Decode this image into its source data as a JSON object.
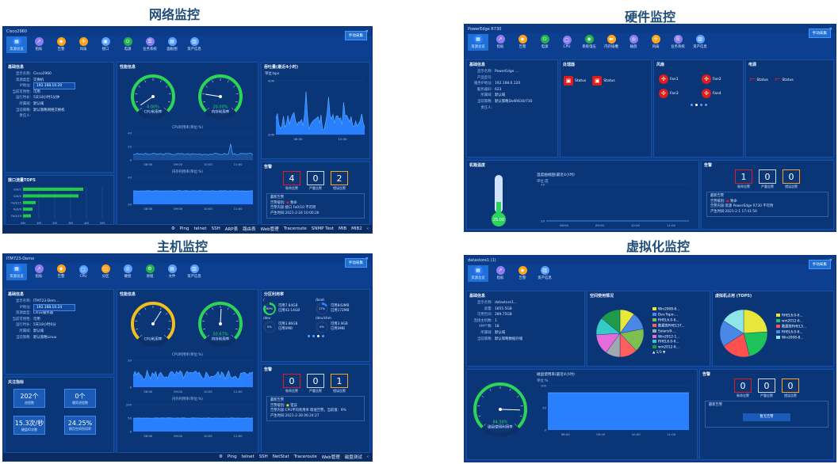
{
  "sections": {
    "network": "网络监控",
    "hardware": "硬件监控",
    "host": "主机监控",
    "virt": "虚拟化监控"
  },
  "common": {
    "close": "✕",
    "manual_collect": "手动采集",
    "alarm_title": "告警",
    "alarm_labels": [
      "致命告警",
      "严重告警",
      "错误告警"
    ],
    "recent_title": "最新告警",
    "basic_title": "基础信息"
  },
  "net": {
    "window_title": "Cisco2960",
    "toolbar": [
      {
        "label": "资源总览",
        "icon": "grid",
        "color": "#2a7fff"
      },
      {
        "label": "指标",
        "icon": "chart",
        "color": "#8c7cf0"
      },
      {
        "label": "告警",
        "icon": "bell",
        "color": "#ffa31a"
      },
      {
        "label": "风扇",
        "icon": "fan",
        "color": "#ffa31a"
      },
      {
        "label": "接口",
        "icon": "port",
        "color": "#5aa0ff"
      },
      {
        "label": "电源",
        "icon": "power",
        "color": "#22b14c"
      },
      {
        "label": "业务系统",
        "icon": "biz",
        "color": "#8c7cf0"
      },
      {
        "label": "面板图",
        "icon": "panel",
        "color": "#5aa0ff"
      },
      {
        "label": "资产信息",
        "icon": "asset",
        "color": "#5aa0ff"
      }
    ],
    "basic": [
      {
        "k": "显示名称:",
        "v": "Cisco2960"
      },
      {
        "k": "资源类型:",
        "v": "交换机"
      },
      {
        "k": "IP地址:",
        "v": "192.168.10.20"
      },
      {
        "k": "当前可用性:",
        "v": "可用"
      },
      {
        "k": "运行时长:",
        "v": "5天18小时5分钟"
      },
      {
        "k": "所属域:",
        "v": "默认域"
      },
      {
        "k": "当前策略:",
        "v": "默认策略网络交换机"
      },
      {
        "k": "责任人:",
        "v": ""
      }
    ],
    "perf_title": "性能信息",
    "gauge1": {
      "value": "4.00%",
      "label": "CPU利用率"
    },
    "gauge2": {
      "value": "20.00%",
      "label": "内存利用率"
    },
    "cpu_chart_title": "CPU利用率(单位:%)",
    "mem_chart_title": "内存利用率(单位:%)",
    "line_y": [
      "40",
      "20",
      "0"
    ],
    "line_x": [
      "08:00",
      "09:00",
      "10:00",
      "11:00"
    ],
    "mem_y": [
      "40",
      "20"
    ],
    "traffic_title": "接口流量TOP5",
    "traffic": [
      {
        "name": "Gi0/1",
        "value": "3.8M"
      },
      {
        "name": "Gi0/2",
        "value": "3.5M"
      },
      {
        "name": "Fa0/15",
        "value": "0.8M"
      },
      {
        "name": "Fa0/6",
        "value": "0.6M"
      },
      {
        "name": "Fa0/19",
        "value": "0.5M"
      }
    ],
    "traffic_axis": [
      "0M",
      "1M",
      "2M",
      "3M",
      "4M",
      "5M"
    ],
    "throughput_title": "吞吐量(最近4小时)",
    "throughput_unit": "单位:bps",
    "throughput_y": [
      "40M",
      "20M"
    ],
    "throughput_x": [
      "08:00",
      "10:00"
    ],
    "alarms": [
      "4",
      "0",
      "2"
    ],
    "recent_level": "致命",
    "recent_content": "接口 Fa0/10 不可用",
    "recent_time": "2021-2-24 10:00:26",
    "recent_keys": [
      "告警级别:",
      "告警内容:",
      "产生时间:"
    ],
    "status": [
      "Ping",
      "telnet",
      "SSH",
      "ARP表",
      "路由表",
      "Web管理",
      "Traceroute",
      "SNMP Test",
      "MIB",
      "MIB2",
      "‹"
    ]
  },
  "hw": {
    "window_title": "PowerEdge R730",
    "toolbar": [
      {
        "label": "资源总览",
        "icon": "grid",
        "color": "#2a7fff"
      },
      {
        "label": "指标",
        "icon": "chart",
        "color": "#8c7cf0"
      },
      {
        "label": "告警",
        "icon": "bell",
        "color": "#ffa31a"
      },
      {
        "label": "电源",
        "icon": "power",
        "color": "#22b14c"
      },
      {
        "label": "CPU",
        "icon": "cpu",
        "color": "#8c7cf0"
      },
      {
        "label": "系统电压",
        "icon": "volt",
        "color": "#22b14c"
      },
      {
        "label": "内存插槽",
        "icon": "mem",
        "color": "#ffa31a"
      },
      {
        "label": "磁盘",
        "icon": "disk",
        "color": "#8c7cf0"
      },
      {
        "label": "风扇",
        "icon": "fan",
        "color": "#ffa31a"
      },
      {
        "label": "业务系统",
        "icon": "biz",
        "color": "#8c7cf0"
      },
      {
        "label": "资产信息",
        "icon": "asset",
        "color": "#5aa0ff"
      }
    ],
    "basic": [
      {
        "k": "显示名称:",
        "v": "PowerEdge ..."
      },
      {
        "k": "产品型号:",
        "v": ""
      },
      {
        "k": "服务IP地址:",
        "v": "192.168.0.120"
      },
      {
        "k": "服务器ID:",
        "v": "623"
      },
      {
        "k": "所属域:",
        "v": "默认域"
      },
      {
        "k": "当前策略:",
        "v": "默认策略DellR630/730"
      },
      {
        "k": "责任人:",
        "v": ""
      }
    ],
    "proc_title": "处理器",
    "proc_items": [
      "Status",
      "Status"
    ],
    "fan_title": "风扇",
    "fans": [
      "Fan1",
      "Fan2",
      "Fan3",
      "Fan4"
    ],
    "psu_title": "电源",
    "psu_items": [
      "Status",
      "Status"
    ],
    "temp_title": "机箱温度",
    "temp_value": "25.00",
    "temp_chart_title": "温度曲线图(最近4小时)",
    "temp_unit": "单位:度",
    "temp_y": [
      "40",
      "20"
    ],
    "temp_x": [
      "08:00",
      "09:00",
      "10:00",
      "11:00"
    ],
    "alarms": [
      "1",
      "0",
      "0"
    ],
    "recent_level": "致命",
    "recent_content": "资源 PowerEdge R730 不可用",
    "recent_time": "2021-2-1 17:41:56",
    "recent_keys": [
      "告警级别:",
      "告警内容:",
      "产生时间:"
    ]
  },
  "host": {
    "window_title": "ITM723-Demo",
    "toolbar": [
      {
        "label": "资源总览",
        "icon": "grid",
        "color": "#2a7fff"
      },
      {
        "label": "指标",
        "icon": "chart",
        "color": "#8c7cf0"
      },
      {
        "label": "告警",
        "icon": "bell",
        "color": "#ffa31a"
      },
      {
        "label": "CPU",
        "icon": "cpu",
        "color": "#5aa0ff"
      },
      {
        "label": "分区",
        "icon": "part",
        "color": "#ffa31a"
      },
      {
        "label": "硬盘",
        "icon": "disk",
        "color": "#5aa0ff"
      },
      {
        "label": "进程",
        "icon": "proc",
        "color": "#22b14c"
      },
      {
        "label": "文件",
        "icon": "file",
        "color": "#5aa0ff"
      },
      {
        "label": "资产信息",
        "icon": "asset",
        "color": "#5aa0ff"
      }
    ],
    "basic": [
      {
        "k": "显示名称:",
        "v": "ITM723-Dem..."
      },
      {
        "k": "IP地址:",
        "v": "192.168.10.24"
      },
      {
        "k": "资源类型:",
        "v": "Linux服务器"
      },
      {
        "k": "当前可用性:",
        "v": "可用"
      },
      {
        "k": "运行时长:",
        "v": "5天18小时0分"
      },
      {
        "k": "所属域:",
        "v": "默认域"
      },
      {
        "k": "当前策略:",
        "v": "默认策略Linux"
      }
    ],
    "perf_title": "性能信息",
    "gauge1": {
      "value": "",
      "label": "CPU利用率"
    },
    "gauge2": {
      "value": "50.67%",
      "label": "内存利用率"
    },
    "cpu_chart_title": "CPU利用率(单位:%)",
    "mem_chart_title": "内存利用率(单位:%)",
    "line_y": [
      "20",
      "0"
    ],
    "line_x": [
      "08:00",
      "09:00",
      "10:00",
      "11:00"
    ],
    "mem_y": [
      "100",
      "50",
      "0"
    ],
    "part_title": "分区利用率",
    "parts": [
      {
        "name": "/",
        "pct": "85%",
        "avail": "可用7.84GB",
        "used": "已用42.14GB"
      },
      {
        "name": "/boot",
        "pct": "17%",
        "avail": "可用843MB",
        "used": "已用172MB"
      },
      {
        "name": "/dev",
        "pct": "0%",
        "avail": "可用3.86GB",
        "used": "已用0MB"
      },
      {
        "name": "/dev/shm",
        "pct": "0%",
        "avail": "可用3.9GB",
        "used": "已用0MB"
      }
    ],
    "kpi_title": "关注指标",
    "kpis": [
      {
        "v": "202个",
        "l": "进程数"
      },
      {
        "v": "0个",
        "l": "僵死进程数"
      },
      {
        "v": "15.3次/秒",
        "l": "硬盘IO次数"
      },
      {
        "v": "24.25%",
        "l": "换页空间利用率"
      }
    ],
    "alarms": [
      "0",
      "0",
      "1"
    ],
    "recent_level": "错误",
    "recent_content": "CPU平均利用率 取值告警，当前值：9%",
    "recent_time": "2021-2-28 06:24:27",
    "recent_keys": [
      "告警级别:",
      "告警内容:",
      "产生时间:"
    ],
    "status": [
      "Ping",
      "telnet",
      "SSH",
      "NetStat",
      "Traceroute",
      "Web管理",
      "磁盘测试",
      "‹"
    ]
  },
  "virt": {
    "window_title": "datastore1 (1)",
    "toolbar": [
      {
        "label": "资源总览",
        "icon": "grid",
        "color": "#2a7fff"
      },
      {
        "label": "指标",
        "icon": "chart",
        "color": "#8c7cf0"
      },
      {
        "label": "告警",
        "icon": "bell",
        "color": "#ffa31a"
      },
      {
        "label": "资产信息",
        "icon": "asset",
        "color": "#5aa0ff"
      }
    ],
    "basic": [
      {
        "k": "显示名称:",
        "v": "datastore1..."
      },
      {
        "k": "容量:",
        "v": "1855.5GB"
      },
      {
        "k": "可用空间:",
        "v": "289.75GB"
      },
      {
        "k": "连接主机数:",
        "v": "1"
      },
      {
        "k": "VM个数:",
        "v": "18"
      },
      {
        "k": "所属域:",
        "v": "默认域"
      },
      {
        "k": "当前策略:",
        "v": "默认策略数据存储"
      }
    ],
    "space_title": "空间使用情况",
    "space_legend": [
      {
        "name": "Win2008-6...",
        "color": "#e8e83a"
      },
      {
        "name": "Dev.Topo-...",
        "color": "#4b87e6"
      },
      {
        "name": "RHEL6.0-6...",
        "color": "#7fbf4f"
      },
      {
        "name": "数据库RHEL57...",
        "color": "#ff5f5f"
      },
      {
        "name": "Solaris9-...",
        "color": "#9fa7b0"
      },
      {
        "name": "Win2012-1...",
        "color": "#e66ad9"
      },
      {
        "name": "RHEL6.0-6...",
        "color": "#37c8c8"
      },
      {
        "name": "win2012-6...",
        "color": "#1d9a4a"
      }
    ],
    "space_page": "1/3",
    "vm_title": "虚拟机占用 (TOP5)",
    "vm_legend": [
      {
        "name": "RHEL6.0-6...",
        "color": "#e8e83a"
      },
      {
        "name": "win2012-6...",
        "color": "#1ec45a"
      },
      {
        "name": "数据库RHEL5...",
        "color": "#ff4f4f"
      },
      {
        "name": "RHEL6.0-6...",
        "color": "#4b87e6"
      },
      {
        "name": "Win2008-8...",
        "color": "#8fe6e6"
      }
    ],
    "usage_title": "磁盘使用率(最近4小时)",
    "usage_unit": "单位:%",
    "usage_y": [
      "100",
      "50",
      "0"
    ],
    "usage_x": [
      "08:00",
      "09:00",
      "10:00",
      "11:00"
    ],
    "gauge_value": "84.38%",
    "gauge_label": "磁盘使用利用率",
    "alarms": [
      "0",
      "0",
      "0"
    ],
    "no_alarm": "暂无告警"
  }
}
